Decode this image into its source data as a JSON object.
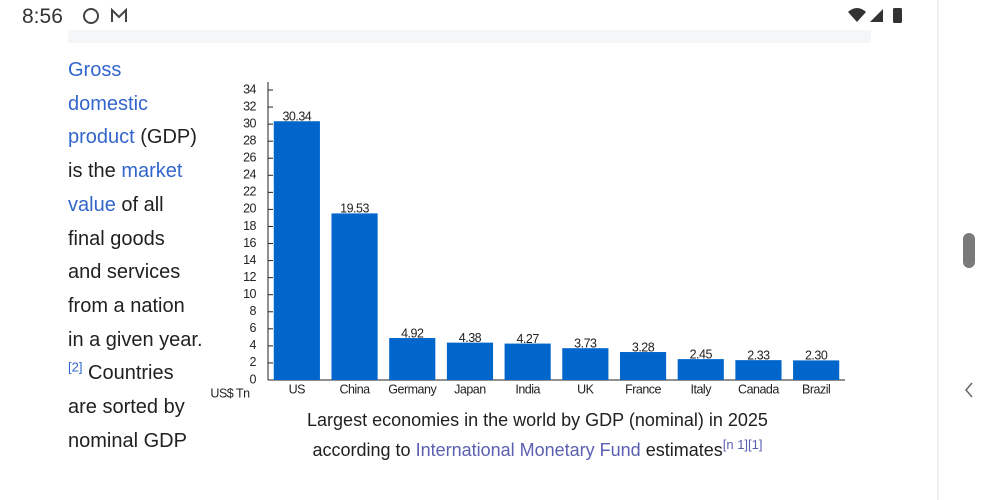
{
  "status_bar": {
    "time": "8:56"
  },
  "article": {
    "intro": {
      "link_1": "Gross domestic product",
      "text_1": " (GDP) is the ",
      "link_2": "market value",
      "text_2": " of all final goods and services from a nation in a given year.",
      "ref": "[2]",
      "text_3": " Countries are sorted by nominal GDP"
    },
    "caption": {
      "line_1": "Largest economies in the world by GDP (nominal) in 2025",
      "text_1": "according to ",
      "link": "International Monetary Fund",
      "text_2": " estimates",
      "ref": "[n 1][1]"
    }
  },
  "chart_data": {
    "type": "bar",
    "y_label": "US$ Tn",
    "categories": [
      "US",
      "China",
      "Germany",
      "Japan",
      "India",
      "UK",
      "France",
      "Italy",
      "Canada",
      "Brazil"
    ],
    "values": [
      30.34,
      19.53,
      4.92,
      4.38,
      4.27,
      3.73,
      3.28,
      2.45,
      2.33,
      2.3
    ],
    "value_labels": [
      "30.34",
      "19.53",
      "4.92",
      "4.38",
      "4.27",
      "3.73",
      "3.28",
      "2.45",
      "2.33",
      "2.30"
    ],
    "color": "#0066cc",
    "ylim": [
      0,
      34
    ],
    "yticks": [
      0,
      2,
      4,
      6,
      8,
      10,
      12,
      14,
      16,
      18,
      20,
      22,
      24,
      26,
      28,
      30,
      32,
      34
    ]
  }
}
